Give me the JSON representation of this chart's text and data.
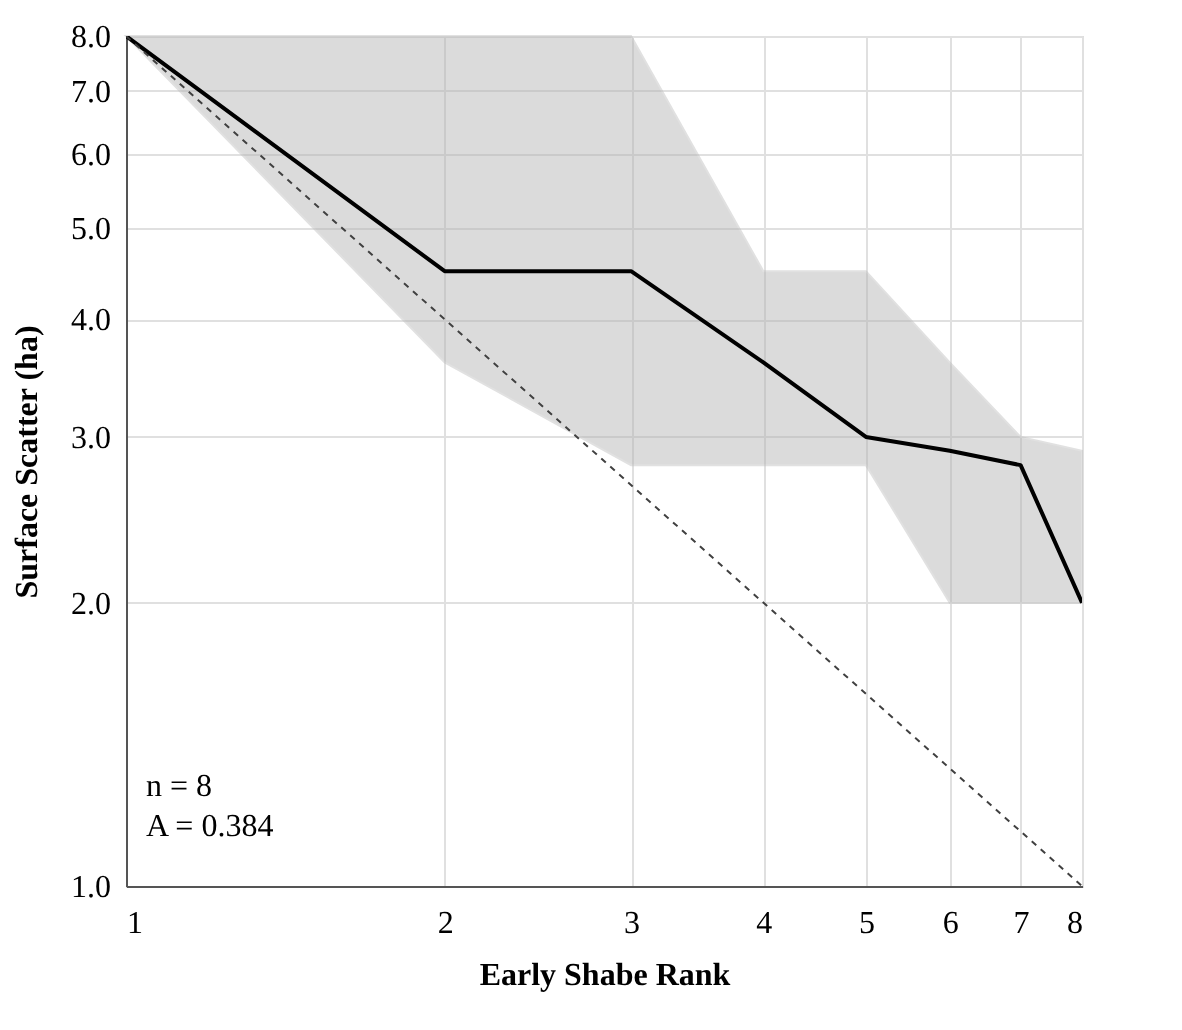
{
  "chart_data": {
    "type": "line",
    "xlabel": "Early Shabe Rank",
    "ylabel": "Surface Scatter (ha)",
    "x": [
      1,
      2,
      3,
      4,
      5,
      6,
      7,
      8
    ],
    "series": [
      {
        "color": "#000000",
        "values": [
          8.0,
          4.5,
          4.5,
          3.6,
          3.0,
          2.9,
          2.8,
          2.0
        ],
        "lower": [
          8.0,
          3.6,
          2.8,
          2.8,
          2.8,
          2.0,
          2.0,
          2.0
        ],
        "upper": [
          8.0,
          8.0,
          8.0,
          4.5,
          4.5,
          3.6,
          3.0,
          2.9
        ]
      },
      {
        "color": "#404040",
        "line_style": "dashed",
        "x": [
          1,
          8
        ],
        "values": [
          8.0,
          1.0
        ]
      }
    ],
    "log": "xy",
    "xlim": [
      1,
      8
    ],
    "ylim": [
      1.0,
      8.0
    ],
    "xticks": [
      1,
      2,
      3,
      4,
      5,
      6,
      7,
      8
    ],
    "yticks": [
      {
        "value": 1,
        "label": "1.0"
      },
      {
        "value": 2,
        "label": "2.0"
      },
      {
        "value": 3,
        "label": "3.0"
      },
      {
        "value": 4,
        "label": "4.0"
      },
      {
        "value": 5,
        "label": "5.0"
      },
      {
        "value": 6,
        "label": "6.0"
      },
      {
        "value": 7,
        "label": "7.0"
      },
      {
        "value": 8,
        "label": "8.0"
      }
    ],
    "grid": true,
    "legend": false,
    "marker": "none",
    "line_style": "solid",
    "annotations": [
      "n = 8",
      "A = 0.384"
    ]
  }
}
